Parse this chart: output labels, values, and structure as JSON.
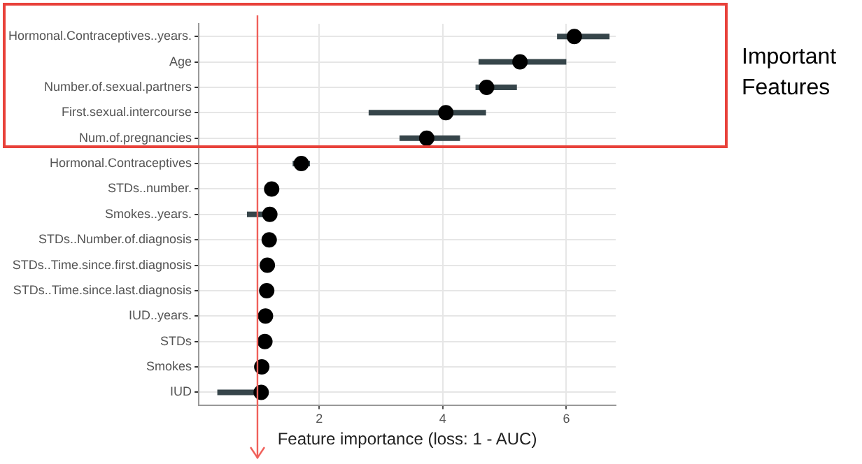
{
  "chart_data": {
    "type": "scatter",
    "xlabel": "Feature importance (loss: 1 - AUC)",
    "categories": [
      "Hormonal.Contraceptives..years.",
      "Age",
      "Number.of.sexual.partners",
      "First.sexual.intercourse",
      "Num.of.pregnancies",
      "Hormonal.Contraceptives",
      "STDs..number.",
      "Smokes..years.",
      "STDs..Number.of.diagnosis",
      "STDs..Time.since.first.diagnosis",
      "STDs..Time.since.last.diagnosis",
      "IUD..years.",
      "STDs",
      "Smokes",
      "IUD"
    ],
    "values": [
      6.13,
      5.25,
      4.71,
      4.05,
      3.74,
      1.71,
      1.23,
      1.2,
      1.19,
      1.16,
      1.15,
      1.13,
      1.12,
      1.07,
      1.06
    ],
    "errors": [
      [
        5.85,
        6.7
      ],
      [
        4.58,
        6.0
      ],
      [
        4.53,
        5.2
      ],
      [
        2.8,
        4.7
      ],
      [
        3.3,
        4.28
      ],
      [
        1.57,
        1.85
      ],
      null,
      [
        0.83,
        1.2
      ],
      null,
      null,
      null,
      null,
      null,
      null,
      [
        0.35,
        1.06
      ]
    ],
    "color": "#000000",
    "marker": "circle",
    "xlim": [
      0.05,
      6.8
    ],
    "xticks": [
      2,
      4,
      6
    ],
    "grid": true,
    "legend": false,
    "ref_lines": [
      {
        "axis": "x",
        "value": 1,
        "color": "#f0605a"
      }
    ],
    "orientation": "horizontal",
    "annotations": [
      "Important Features"
    ]
  }
}
